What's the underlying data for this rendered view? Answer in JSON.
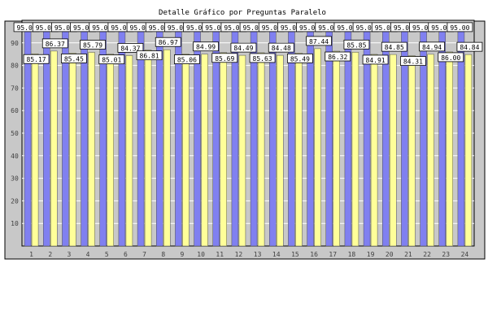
{
  "chart_data": {
    "type": "bar",
    "title": "Detalle Gráfico por Preguntas Paralelo",
    "xlabel": "",
    "ylabel": "",
    "ylim": [
      0,
      100
    ],
    "yticks": [
      10,
      20,
      30,
      40,
      50,
      60,
      70,
      80,
      90
    ],
    "grid": true,
    "legend": "none",
    "categories": [
      "1",
      "2",
      "3",
      "4",
      "5",
      "6",
      "7",
      "8",
      "9",
      "10",
      "11",
      "12",
      "13",
      "14",
      "15",
      "16",
      "17",
      "18",
      "19",
      "20",
      "21",
      "22",
      "23",
      "24"
    ],
    "series": [
      {
        "color": "#8080f0",
        "values": [
          95,
          95,
          95,
          95,
          95,
          95,
          95,
          95,
          95,
          95,
          95,
          95,
          95,
          95,
          95,
          95,
          95,
          95,
          95,
          95,
          95,
          95,
          95,
          95
        ],
        "labels": [
          "95.00",
          "95.00",
          "95.00",
          "95.00",
          "95.00",
          "95.00",
          "95.00",
          "95.00",
          "95.00",
          "95.00",
          "95.00",
          "95.00",
          "95.00",
          "95.00",
          "95.00",
          "95.00",
          "95.00",
          "95.00",
          "95.00",
          "95.00",
          "95.00",
          "95.00",
          "95.00",
          "95.00"
        ]
      },
      {
        "color": "#ffff99",
        "values": [
          85.17,
          86.37,
          85.45,
          85.79,
          85.01,
          84.37,
          86.81,
          86.97,
          85.06,
          84.99,
          85.69,
          84.49,
          85.63,
          84.48,
          85.49,
          87.44,
          86.32,
          85.85,
          84.91,
          84.85,
          84.31,
          84.94,
          86.0,
          84.84
        ],
        "labels": [
          "85.17",
          "86.37",
          "85.45",
          "85.79",
          "85.01",
          "84.37",
          "86.81",
          "86.97",
          "85.06",
          "84.99",
          "85.69",
          "84.49",
          "85.63",
          "84.48",
          "85.49",
          "87.44",
          "86.32",
          "85.85",
          "84.91",
          "84.85",
          "84.31",
          "84.94",
          "86.00",
          "84.84"
        ]
      }
    ]
  },
  "colors": {
    "plot_background": "#c8c8c8",
    "gridline": "#ffffff",
    "axis_text": "#404040",
    "bar_outline": "#505050",
    "label_box": "#ffffff"
  }
}
